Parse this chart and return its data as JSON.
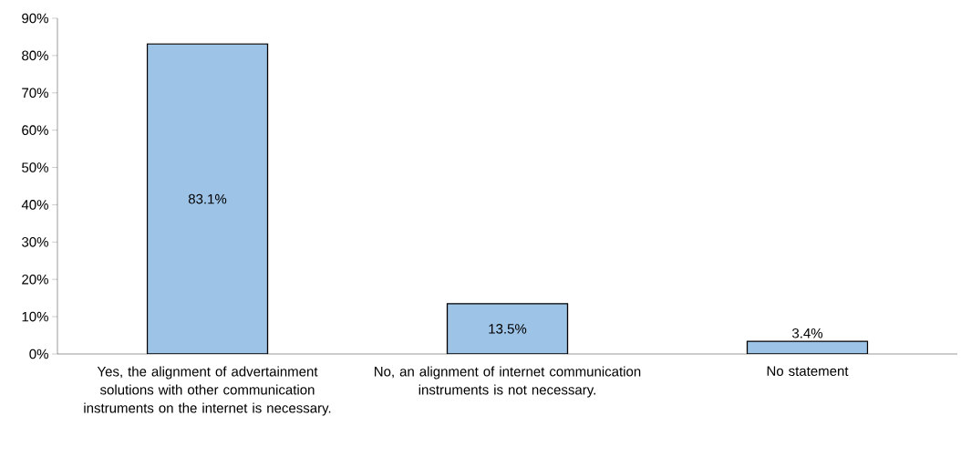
{
  "chart_data": {
    "type": "bar",
    "categories": [
      "Yes, the alignment of advertainment solutions with other communication instruments on the internet is necessary.",
      "No, an alignment of  internet communication instruments is not necessary.",
      "No statement"
    ],
    "values": [
      83.1,
      13.5,
      3.4
    ],
    "value_labels": [
      "83.1%",
      "13.5%",
      "3.4%"
    ],
    "color": "#9dc3e6",
    "ylim": [
      0,
      90
    ],
    "yticks": [
      {
        "value": 0,
        "label": "0%"
      },
      {
        "value": 10,
        "label": "10%"
      },
      {
        "value": 20,
        "label": "20%"
      },
      {
        "value": 30,
        "label": "30%"
      },
      {
        "value": 40,
        "label": "40%"
      },
      {
        "value": 50,
        "label": "50%"
      },
      {
        "value": 60,
        "label": "60%"
      },
      {
        "value": 70,
        "label": "70%"
      },
      {
        "value": 80,
        "label": "80%"
      },
      {
        "value": 90,
        "label": "90%"
      }
    ],
    "grid": false
  }
}
